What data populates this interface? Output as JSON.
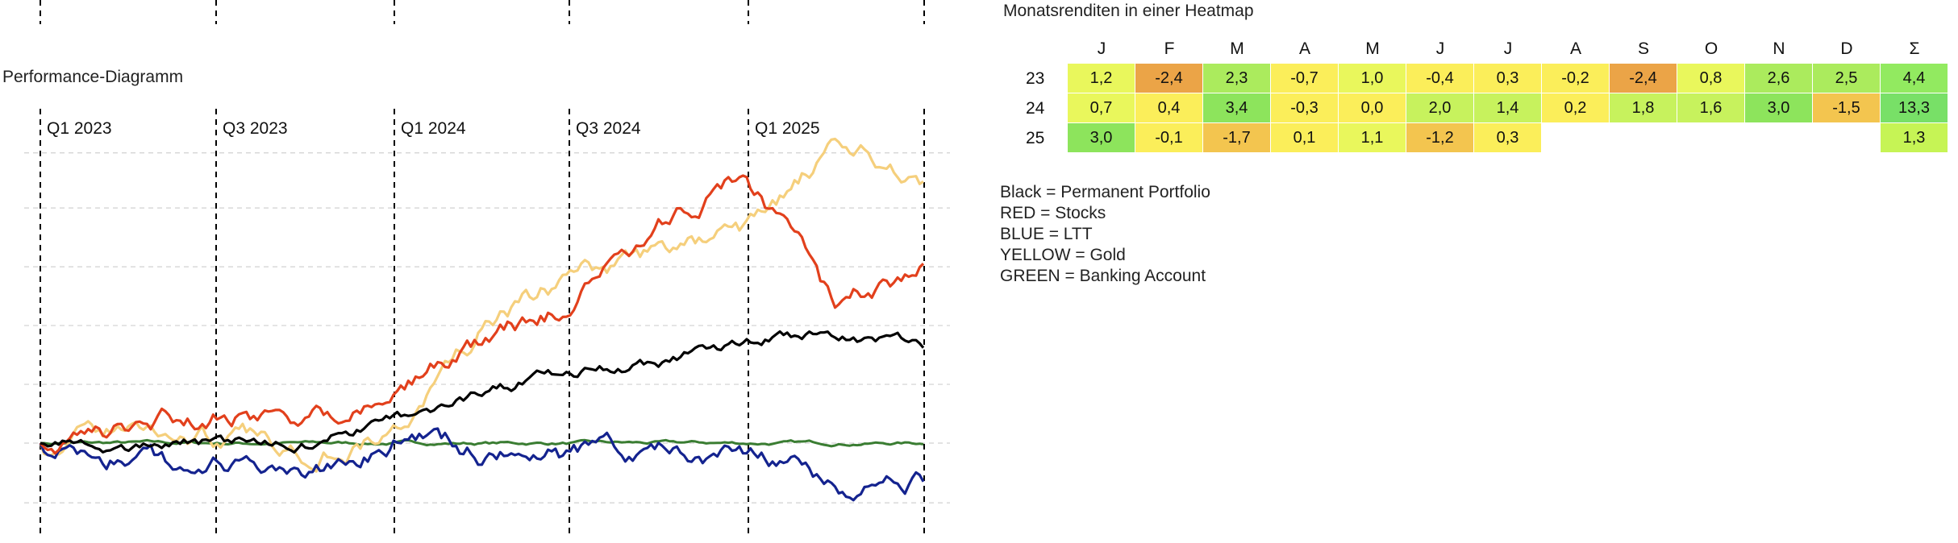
{
  "performance_chart": {
    "title": "Performance-Diagramm"
  },
  "heatmap": {
    "title": "Monatsrenditen in einer Heatmap",
    "columns": [
      "J",
      "F",
      "M",
      "A",
      "M",
      "J",
      "J",
      "A",
      "S",
      "O",
      "N",
      "D",
      "Σ"
    ],
    "rows": [
      {
        "label": "23",
        "values": [
          "1,2",
          "-2,4",
          "2,3",
          "-0,7",
          "1,0",
          "-0,4",
          "0,3",
          "-0,2",
          "-2,4",
          "0,8",
          "2,6",
          "2,5",
          "4,4"
        ]
      },
      {
        "label": "24",
        "values": [
          "0,7",
          "0,4",
          "3,4",
          "-0,3",
          "0,0",
          "2,0",
          "1,4",
          "0,2",
          "1,8",
          "1,6",
          "3,0",
          "-1,5",
          "13,3"
        ]
      },
      {
        "label": "25",
        "values": [
          "3,0",
          "-0,1",
          "-1,7",
          "0,1",
          "1,1",
          "-1,2",
          "0,3",
          "",
          "",
          "",
          "",
          "",
          "1,3"
        ]
      }
    ]
  },
  "legend_notes": [
    "Black = Permanent Portfolio",
    "RED = Stocks",
    "BLUE = LTT",
    "YELLOW = Gold",
    "GREEN = Banking Account"
  ],
  "colors": {
    "stocks": "#e2401c",
    "gold": "#f5cf7c",
    "portfolio": "#000000",
    "ltt": "#14238f",
    "banking": "#3a7d32"
  },
  "chart_data": [
    {
      "type": "line",
      "title": "Performance-Diagramm",
      "x_tick_labels": [
        "Q1 2023",
        "Q3 2023",
        "Q1 2024",
        "Q3 2024",
        "Q1 2025"
      ],
      "x": [
        "2023-01",
        "2023-04",
        "2023-07",
        "2023-10",
        "2024-01",
        "2024-04",
        "2024-07",
        "2024-10",
        "2025-01",
        "2025-04",
        "2025-07"
      ],
      "y_tick_labels": [],
      "grid": true,
      "series": [
        {
          "name": "Stocks",
          "values": [
            0.0,
            1.0,
            3.5,
            2.5,
            5.5,
            10.5,
            15.5,
            23.0,
            30.0,
            14.5,
            19.5
          ]
        },
        {
          "name": "Gold",
          "values": [
            0.0,
            1.5,
            0.5,
            -0.5,
            1.0,
            12.0,
            18.0,
            20.5,
            23.0,
            31.5,
            29.0
          ]
        },
        {
          "name": "Permanent Portfolio",
          "values": [
            0.0,
            -0.5,
            0.0,
            -0.3,
            2.5,
            5.0,
            8.0,
            8.5,
            11.0,
            12.0,
            10.5
          ]
        },
        {
          "name": "LTT",
          "values": [
            0.0,
            -2.0,
            -2.5,
            -5.0,
            1.0,
            -1.5,
            -1.5,
            -0.5,
            -1.0,
            -5.0,
            -4.5
          ]
        },
        {
          "name": "Banking Account",
          "values": [
            0.0,
            0.0,
            0.0,
            0.0,
            0.0,
            0.0,
            0.0,
            0.0,
            0.0,
            0.0,
            0.0
          ]
        }
      ]
    },
    {
      "type": "heatmap",
      "title": "Monatsrenditen in einer Heatmap",
      "columns": [
        "J",
        "F",
        "M",
        "A",
        "M",
        "J",
        "J",
        "A",
        "S",
        "O",
        "N",
        "D",
        "Σ"
      ],
      "rows": [
        "23",
        "24",
        "25"
      ],
      "values": [
        [
          1.2,
          -2.4,
          2.3,
          -0.7,
          1.0,
          -0.4,
          0.3,
          -0.2,
          -2.4,
          0.8,
          2.6,
          2.5,
          4.4
        ],
        [
          0.7,
          0.4,
          3.4,
          -0.3,
          0.0,
          2.0,
          1.4,
          0.2,
          1.8,
          1.6,
          3.0,
          -1.5,
          13.3
        ],
        [
          3.0,
          -0.1,
          -1.7,
          0.1,
          1.1,
          -1.2,
          0.3,
          null,
          null,
          null,
          null,
          null,
          1.3
        ]
      ]
    }
  ]
}
